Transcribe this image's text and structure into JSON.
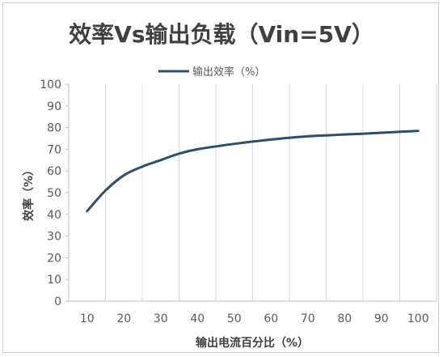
{
  "chart_data": {
    "type": "line",
    "title": "效率Vs输出负载（Vin=5V）",
    "xlabel": "输出电流百分比（%）",
    "ylabel": "效率（%）",
    "x": [
      10,
      15,
      20,
      25,
      30,
      35,
      40,
      50,
      60,
      70,
      80,
      90,
      100
    ],
    "series": [
      {
        "name": "输出效率（%）",
        "color": "#2e4e6e",
        "values": [
          41.5,
          51,
          58,
          62,
          65,
          68,
          70,
          72.5,
          74.5,
          76,
          76.8,
          77.6,
          78.5
        ]
      }
    ],
    "xticks": [
      10,
      20,
      30,
      40,
      50,
      60,
      70,
      80,
      90,
      100
    ],
    "yticks": [
      0,
      10,
      20,
      30,
      40,
      50,
      60,
      70,
      80,
      90,
      100
    ],
    "xlim": [
      5,
      105
    ],
    "ylim": [
      0,
      100
    ],
    "grid": "vertical",
    "legend": "top"
  }
}
